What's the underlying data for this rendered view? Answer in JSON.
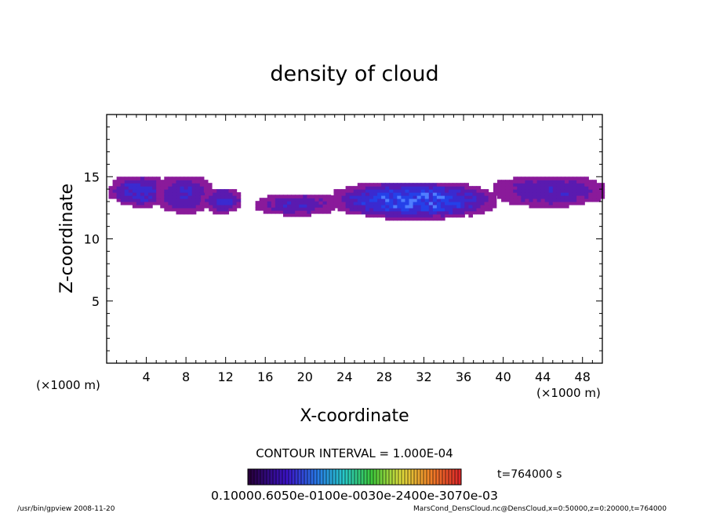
{
  "chart_data": {
    "type": "heatmap",
    "title": "density of cloud",
    "xlabel": "X-coordinate",
    "ylabel": "Z-coordinate",
    "x_unit": "(×1000 m)",
    "y_unit": "(×1000 m)",
    "xlim": [
      0,
      50
    ],
    "ylim": [
      0,
      20
    ],
    "x_ticks": [
      4,
      8,
      12,
      16,
      20,
      24,
      28,
      32,
      36,
      40,
      44,
      48
    ],
    "y_ticks": [
      5,
      10,
      15
    ],
    "contour_interval": "CONTOUR INTERVAL = 1.000E-04",
    "time_label": "t=764000 s",
    "colorbar_labels": "0.1000e-6",
    "colorbar_labels_full": "0.10000.6050e-0100e-0030e-2400e-3070e-03",
    "colors": {
      "low": "#6a1ab8",
      "mid": "#2233dd",
      "high": "#5a8cff",
      "edge": "#8a1a8a"
    },
    "cloud_regions": [
      {
        "x": [
          0.2,
          6.0
        ],
        "z": [
          12.5,
          15.0
        ],
        "peak": 0.45
      },
      {
        "x": [
          5.0,
          10.5
        ],
        "z": [
          12.0,
          15.0
        ],
        "peak": 0.35
      },
      {
        "x": [
          9.5,
          13.5
        ],
        "z": [
          12.0,
          14.0
        ],
        "peak": 0.35
      },
      {
        "x": [
          15.0,
          23.0
        ],
        "z": [
          11.8,
          13.5
        ],
        "peak": 0.3
      },
      {
        "x": [
          22.5,
          39.0
        ],
        "z": [
          11.5,
          14.5
        ],
        "peak": 0.75
      },
      {
        "x": [
          39.0,
          50.0
        ],
        "z": [
          12.5,
          15.0
        ],
        "peak": 0.3
      }
    ],
    "footer_left": "/usr/bin/gpview  2008-11-20",
    "footer_right": "MarsCond_DensCloud.nc@DensCloud,x=0:50000,z=0:20000,t=764000"
  }
}
